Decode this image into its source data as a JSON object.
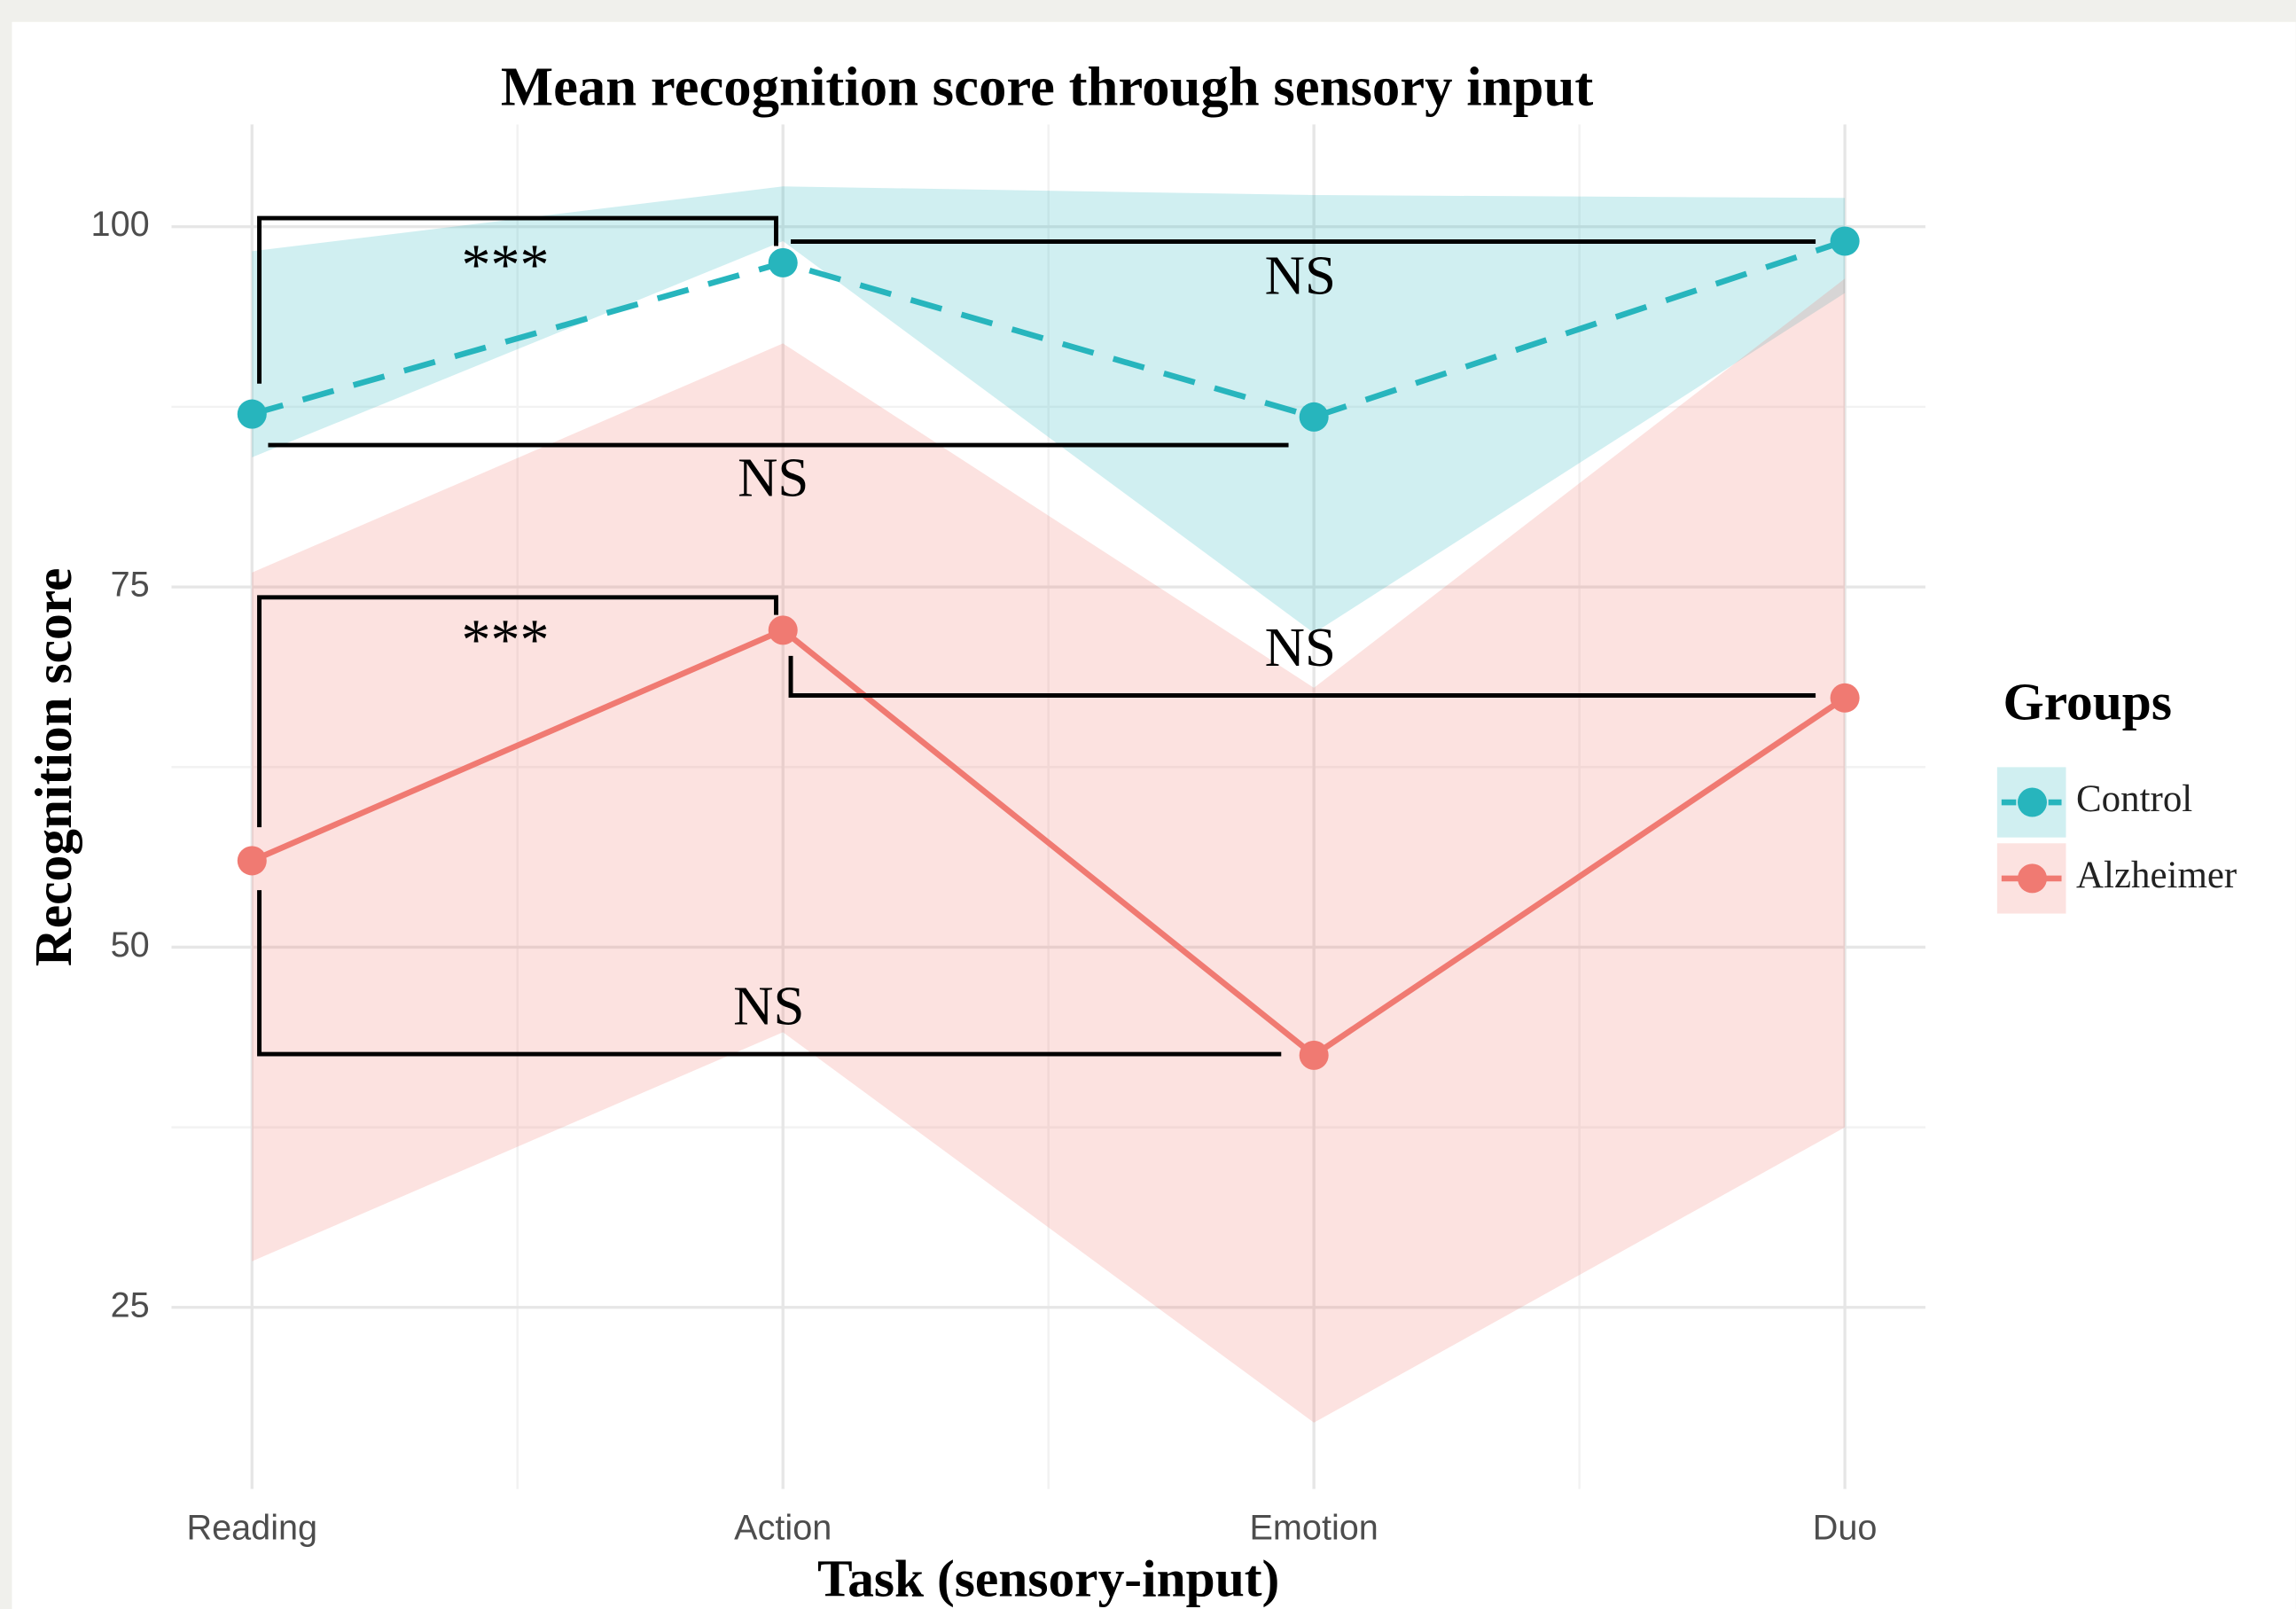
{
  "chart_data": {
    "type": "line",
    "title": "Mean recognition score through sensory input",
    "x_label": "Task (sensory-input)",
    "y_label": "Recognition score",
    "categories": [
      "Reading",
      "Action",
      "Emotion",
      "Duo"
    ],
    "series": [
      {
        "name": "Control",
        "color": "#27b5bd",
        "dash": true,
        "values": [
          87,
          97.5,
          86.8,
          99
        ],
        "lower": [
          84,
          99,
          71.8,
          95.4
        ],
        "upper": [
          98.3,
          102.8,
          102.2,
          102
        ]
      },
      {
        "name": "Alzheimer",
        "color": "#f07a72",
        "dash": false,
        "values": [
          56,
          72,
          42.5,
          67.3
        ],
        "lower": [
          28.2,
          44.1,
          17,
          37.5
        ],
        "upper": [
          76,
          91.9,
          68,
          96.4
        ]
      }
    ],
    "ylim": [
      12.4,
      107.1
    ],
    "yticks": [
      25,
      50,
      75,
      100
    ],
    "minor_yticks": [
      37.5,
      62.5,
      87.5
    ],
    "grid": true,
    "legend_title": "Groups",
    "legend": "right",
    "annotations": [
      {
        "text": "***"
      },
      {
        "text": "NS"
      },
      {
        "text": "NS"
      },
      {
        "text": "***"
      },
      {
        "text": "NS"
      },
      {
        "text": "NS"
      }
    ]
  }
}
